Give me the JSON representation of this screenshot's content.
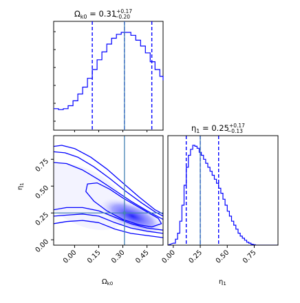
{
  "chart_data": {
    "type": "corner",
    "colors": {
      "main": "#0000ff",
      "truth": "#4682b4"
    },
    "parameters": [
      {
        "name": "Omega_k0",
        "label": "Ω",
        "label_sub": "k0",
        "median": 0.31,
        "err_plus": 0.17,
        "err_minus": 0.2,
        "title": {
          "lhs": "Ω",
          "sub": "k0",
          "eq": " = 0.31",
          "sup": "+0.17",
          "inf": "−0.20"
        }
      },
      {
        "name": "eta_1",
        "label": "η",
        "label_sub": "1",
        "median": 0.25,
        "err_plus": 0.17,
        "err_minus": 0.13,
        "title": {
          "lhs": "η",
          "sub": "1",
          "eq": " = 0.25",
          "sup": "+0.17",
          "inf": "−0.13"
        }
      }
    ],
    "truth": {
      "Omega_k0": 0.31,
      "eta_1": 0.25
    },
    "panels": {
      "omega_hist": {
        "type": "step-histogram",
        "xlim": [
          -0.13,
          0.55
        ],
        "quantile_lines": [
          0.11,
          0.31,
          0.48
        ],
        "x": [
          -0.13,
          -0.1,
          -0.07,
          -0.04,
          -0.01,
          0.02,
          0.05,
          0.08,
          0.11,
          0.14,
          0.17,
          0.2,
          0.23,
          0.26,
          0.29,
          0.32,
          0.35,
          0.38,
          0.41,
          0.44,
          0.47,
          0.5,
          0.53,
          0.55
        ],
        "density": [
          0.22,
          0.21,
          0.22,
          0.25,
          0.3,
          0.37,
          0.44,
          0.53,
          0.62,
          0.72,
          0.8,
          0.88,
          0.94,
          0.98,
          1.0,
          1.0,
          0.97,
          0.92,
          0.86,
          0.79,
          0.7,
          0.62,
          0.55,
          0.51
        ]
      },
      "eta_hist": {
        "type": "step-histogram",
        "xlim": [
          -0.05,
          0.97
        ],
        "xticks": [
          "0.00",
          "0.25",
          "0.50",
          "0.75"
        ],
        "quantile_lines": [
          0.12,
          0.25,
          0.42
        ],
        "x": [
          0.0,
          0.02,
          0.04,
          0.06,
          0.08,
          0.1,
          0.12,
          0.14,
          0.16,
          0.18,
          0.2,
          0.22,
          0.24,
          0.26,
          0.28,
          0.3,
          0.32,
          0.34,
          0.36,
          0.38,
          0.4,
          0.42,
          0.44,
          0.46,
          0.48,
          0.5,
          0.52,
          0.54,
          0.56,
          0.58,
          0.6,
          0.62,
          0.64,
          0.66,
          0.68,
          0.7,
          0.72,
          0.74,
          0.76,
          0.8,
          0.85,
          0.9
        ],
        "density": [
          0.02,
          0.06,
          0.12,
          0.24,
          0.4,
          0.6,
          0.78,
          0.9,
          0.96,
          1.0,
          0.99,
          0.97,
          0.93,
          0.9,
          0.86,
          0.82,
          0.78,
          0.74,
          0.7,
          0.66,
          0.62,
          0.57,
          0.52,
          0.46,
          0.4,
          0.34,
          0.29,
          0.24,
          0.2,
          0.16,
          0.12,
          0.09,
          0.07,
          0.05,
          0.03,
          0.02,
          0.01,
          0.005,
          0.0,
          0.0,
          0.0,
          0.0
        ]
      },
      "joint": {
        "type": "contour",
        "xlim": [
          -0.13,
          0.55
        ],
        "ylim": [
          -0.05,
          0.97
        ],
        "xticks": [
          "0.00",
          "0.15",
          "0.30",
          "0.45"
        ],
        "yticks": [
          "0.00",
          "0.25",
          "0.50",
          "0.75"
        ],
        "density_peak": {
          "x": 0.36,
          "y": 0.22
        },
        "contours": [
          {
            "level": "outer",
            "upper": [
              [
                -0.13,
                0.87
              ],
              [
                -0.08,
                0.88
              ],
              [
                0.0,
                0.85
              ],
              [
                0.1,
                0.77
              ],
              [
                0.2,
                0.66
              ],
              [
                0.3,
                0.53
              ],
              [
                0.4,
                0.4
              ],
              [
                0.5,
                0.28
              ],
              [
                0.55,
                0.24
              ]
            ],
            "lower": [
              [
                -0.13,
                0.15
              ],
              [
                -0.05,
                0.17
              ],
              [
                0.05,
                0.18
              ],
              [
                0.15,
                0.16
              ],
              [
                0.25,
                0.1
              ],
              [
                0.35,
                0.06
              ],
              [
                0.45,
                0.04
              ],
              [
                0.55,
                0.02
              ]
            ]
          },
          {
            "level": "2sigma",
            "upper": [
              [
                -0.13,
                0.82
              ],
              [
                -0.06,
                0.81
              ],
              [
                0.02,
                0.77
              ],
              [
                0.12,
                0.68
              ],
              [
                0.22,
                0.57
              ],
              [
                0.32,
                0.45
              ],
              [
                0.42,
                0.34
              ],
              [
                0.5,
                0.26
              ],
              [
                0.55,
                0.22
              ]
            ],
            "lower": [
              [
                -0.13,
                0.22
              ],
              [
                -0.05,
                0.23
              ],
              [
                0.05,
                0.24
              ],
              [
                0.15,
                0.22
              ],
              [
                0.25,
                0.16
              ],
              [
                0.35,
                0.11
              ],
              [
                0.45,
                0.08
              ],
              [
                0.55,
                0.06
              ]
            ]
          },
          {
            "level": "1.5sigma",
            "upper": [
              [
                -0.13,
                0.72
              ],
              [
                -0.05,
                0.71
              ],
              [
                0.05,
                0.65
              ],
              [
                0.15,
                0.56
              ],
              [
                0.25,
                0.46
              ],
              [
                0.35,
                0.36
              ],
              [
                0.45,
                0.27
              ],
              [
                0.55,
                0.19
              ]
            ],
            "lower": [
              [
                -0.13,
                0.28
              ],
              [
                -0.05,
                0.3
              ],
              [
                0.05,
                0.3
              ],
              [
                0.15,
                0.27
              ],
              [
                0.25,
                0.21
              ],
              [
                0.35,
                0.15
              ],
              [
                0.45,
                0.11
              ],
              [
                0.55,
                0.09
              ]
            ]
          },
          {
            "level": "1sigma",
            "closed": [
              [
                0.08,
                0.52
              ],
              [
                0.14,
                0.53
              ],
              [
                0.22,
                0.47
              ],
              [
                0.3,
                0.39
              ],
              [
                0.38,
                0.32
              ],
              [
                0.46,
                0.25
              ],
              [
                0.52,
                0.2
              ],
              [
                0.54,
                0.15
              ],
              [
                0.48,
                0.12
              ],
              [
                0.4,
                0.14
              ],
              [
                0.3,
                0.19
              ],
              [
                0.2,
                0.27
              ],
              [
                0.12,
                0.36
              ],
              [
                0.07,
                0.45
              ]
            ]
          }
        ]
      }
    }
  }
}
